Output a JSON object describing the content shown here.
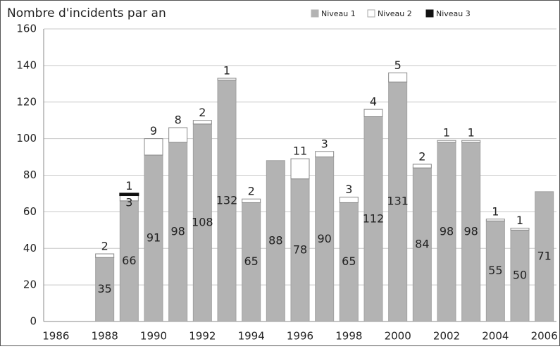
{
  "chart_data": {
    "type": "stacked_bar",
    "title": "Nombre d'incidents par an",
    "categories": [
      1986,
      null,
      1988,
      null,
      1990,
      null,
      1992,
      null,
      1994,
      null,
      1996,
      null,
      1998,
      null,
      2000,
      null,
      2002,
      null,
      2004,
      null,
      2006
    ],
    "series": [
      {
        "name": "Niveau 1",
        "color": "#b3b3b3",
        "values": [
          null,
          null,
          35,
          66,
          91,
          98,
          108,
          132,
          65,
          88,
          78,
          90,
          65,
          112,
          131,
          84,
          98,
          98,
          55,
          50,
          71
        ]
      },
      {
        "name": "Niveau 2",
        "color": "#ffffff",
        "values": [
          null,
          null,
          2,
          3,
          9,
          8,
          2,
          1,
          2,
          null,
          11,
          3,
          3,
          4,
          5,
          2,
          1,
          1,
          1,
          1,
          null
        ]
      },
      {
        "name": "Niveau 3",
        "color": "#111111",
        "values": [
          null,
          null,
          null,
          1,
          null,
          null,
          null,
          null,
          null,
          null,
          null,
          null,
          null,
          null,
          null,
          null,
          null,
          null,
          null,
          null,
          null
        ]
      }
    ],
    "ylim": [
      0,
      160
    ],
    "yticks": [
      0,
      20,
      40,
      60,
      80,
      100,
      120,
      140,
      160
    ],
    "grid": true,
    "legend": "top-right"
  }
}
